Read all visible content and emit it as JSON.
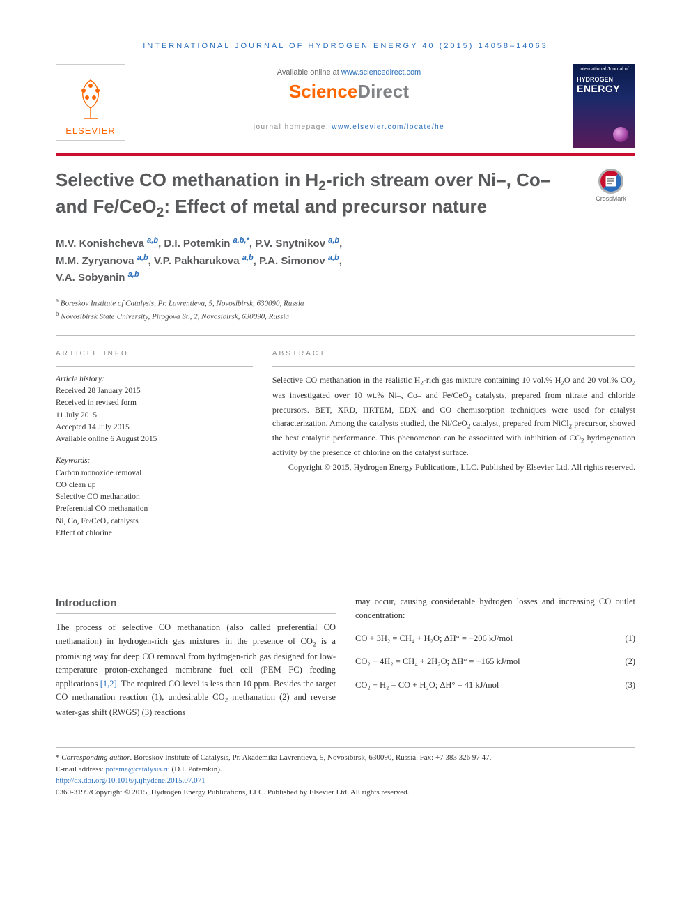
{
  "running_head": "INTERNATIONAL JOURNAL OF HYDROGEN ENERGY 40 (2015) 14058–14063",
  "header": {
    "available_prefix": "Available online at ",
    "available_link": "www.sciencedirect.com",
    "sd_logo_left": "Science",
    "sd_logo_right": "Direct",
    "homepage_prefix": "journal homepage: ",
    "homepage_link": "www.elsevier.com/locate/he",
    "elsevier_word": "ELSEVIER",
    "journal_cover": {
      "small": "International Journal of",
      "line1": "HYDROGEN",
      "line2": "ENERGY"
    }
  },
  "crossmark_label": "CrossMark",
  "title_html": "Selective CO methanation in H<sub>2</sub>-rich stream over Ni–, Co– and Fe/CeO<sub>2</sub>: Effect of metal and precursor nature",
  "authors_html": "M.V. Konishcheva <span class='sup'>a,b</span>, D.I. Potemkin <span class='sup'>a,b,*</span>, P.V. Snytnikov <span class='sup'>a,b</span>,<br>M.M. Zyryanova <span class='sup'>a,b</span>, V.P. Pakharukova <span class='sup'>a,b</span>, P.A. Simonov <span class='sup'>a,b</span>,<br>V.A. Sobyanin <span class='sup'>a,b</span>",
  "affiliations": [
    {
      "sup": "a",
      "text": "Boreskov Institute of Catalysis, Pr. Lavrentieva, 5, Novosibirsk, 630090, Russia"
    },
    {
      "sup": "b",
      "text": "Novosibirsk State University, Pirogova St., 2, Novosibirsk, 630090, Russia"
    }
  ],
  "article_info": {
    "heading": "ARTICLE INFO",
    "history_label": "Article history:",
    "history": [
      "Received 28 January 2015",
      "Received in revised form",
      "11 July 2015",
      "Accepted 14 July 2015",
      "Available online 6 August 2015"
    ],
    "keywords_label": "Keywords:",
    "keywords": [
      "Carbon monoxide removal",
      "CO clean up",
      "Selective CO methanation",
      "Preferential CO methanation",
      "Ni, Co, Fe/CeO₂ catalysts",
      "Effect of chlorine"
    ]
  },
  "abstract": {
    "heading": "ABSTRACT",
    "body_html": "Selective CO methanation in the realistic H<sub>2</sub>-rich gas mixture containing 10 vol.% H<sub>2</sub>O and 20 vol.% CO<sub>2</sub> was investigated over 10 wt.% Ni–, Co– and Fe/CeO<sub>2</sub> catalysts, prepared from nitrate and chloride precursors. BET, XRD, HRTEM, EDX and CO chemisorption techniques were used for catalyst characterization. Among the catalysts studied, the Ni/CeO<sub>2</sub> catalyst, prepared from NiCl<sub>2</sub> precursor, showed the best catalytic performance. This phenomenon can be associated with inhibition of CO<sub>2</sub> hydrogenation activity by the presence of chlorine on the catalyst surface.",
    "copyright": "Copyright © 2015, Hydrogen Energy Publications, LLC. Published by Elsevier Ltd. All rights reserved."
  },
  "introduction": {
    "heading": "Introduction",
    "para1_html": "The process of selective CO methanation (also called preferential CO methanation) in hydrogen-rich gas mixtures in the presence of CO<sub>2</sub> is a promising way for deep CO removal from hydrogen-rich gas designed for low-temperature proton-exchanged membrane fuel cell (PEM FC) feeding applications <span class='ref-link'>[1,2]</span>. The required CO level is less than 10 ppm. Besides the target CO methanation reaction (1), undesirable CO<sub>2</sub> methanation (2) and reverse water-gas shift (RWGS) (3) reactions",
    "para_col2": "may occur, causing considerable hydrogen losses and increasing CO outlet concentration:",
    "eq1": "CO + 3H₂ = CH₄ + H₂O; ΔH° = −206 kJ/mol",
    "eq1_num": "(1)",
    "eq2": "CO₂ + 4H₂ = CH₄ + 2H₂O; ΔH° = −165 kJ/mol",
    "eq2_num": "(2)",
    "eq3": "CO₂ + H₂ = CO + H₂O; ΔH° = 41 kJ/mol",
    "eq3_num": "(3)"
  },
  "footnotes": {
    "corresponding_html": "* <i>Corresponding author</i>. Boreskov Institute of Catalysis, Pr. Akademika Lavrentieva, 5, Novosibirsk, 630090, Russia. Fax: +7 383 326 97 47.",
    "email_prefix": "E-mail address: ",
    "email_link": "potema@catalysis.ru",
    "email_suffix": " (D.I. Potemkin).",
    "doi": "http://dx.doi.org/10.1016/j.ijhydene.2015.07.071",
    "issn_line": "0360-3199/Copyright © 2015, Hydrogen Energy Publications, LLC. Published by Elsevier Ltd. All rights reserved."
  },
  "colors": {
    "link": "#2a6ebb",
    "orange": "#ff6600",
    "red_rule": "#c8102e",
    "heading_gray": "#58595b"
  }
}
